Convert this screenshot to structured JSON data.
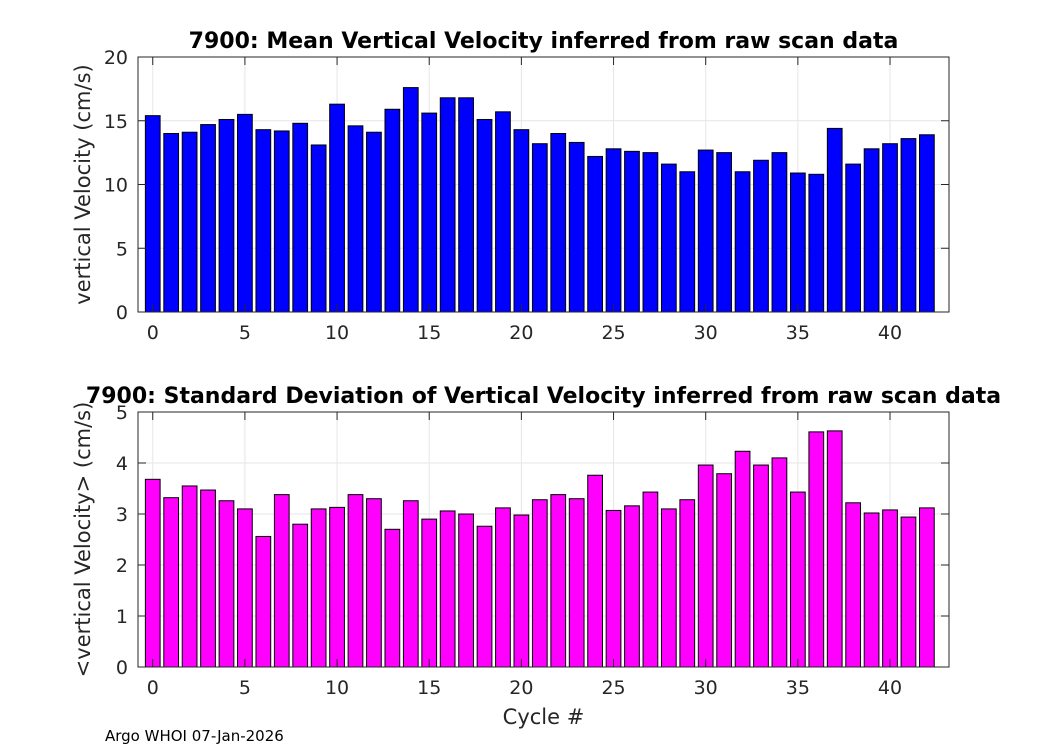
{
  "footer": "Argo WHOI 07-Jan-2026",
  "chart_data": [
    {
      "type": "bar",
      "title": "7900: Mean Vertical Velocity inferred from raw scan data",
      "xlabel": "",
      "ylabel": "vertical Velocity (cm/s)",
      "bar_color": "#0000ff",
      "x": [
        0,
        1,
        2,
        3,
        4,
        5,
        6,
        7,
        8,
        9,
        10,
        11,
        12,
        13,
        14,
        15,
        16,
        17,
        18,
        19,
        20,
        21,
        22,
        23,
        24,
        25,
        26,
        27,
        28,
        29,
        30,
        31,
        32,
        33,
        34,
        35,
        36,
        37,
        38,
        39,
        40,
        41,
        42
      ],
      "values": [
        15.4,
        14.0,
        14.1,
        14.7,
        15.1,
        15.5,
        14.3,
        14.2,
        14.8,
        13.1,
        16.3,
        14.6,
        14.1,
        15.9,
        17.6,
        15.6,
        16.8,
        16.8,
        15.1,
        15.7,
        14.3,
        13.2,
        14.0,
        13.3,
        12.2,
        12.8,
        12.6,
        12.5,
        11.6,
        11.0,
        12.7,
        12.5,
        11.0,
        11.9,
        12.5,
        10.9,
        10.8,
        14.4,
        11.6,
        12.8,
        13.2,
        13.6,
        13.9
      ],
      "xlim": [
        -0.8,
        43.2
      ],
      "ylim": [
        0,
        20
      ],
      "xticks": [
        0,
        5,
        10,
        15,
        20,
        25,
        30,
        35,
        40
      ],
      "yticks": [
        0,
        5,
        10,
        15,
        20
      ],
      "grid": true
    },
    {
      "type": "bar",
      "title": "7900: Standard Deviation of Vertical Velocity inferred from raw scan data",
      "xlabel": "Cycle #",
      "ylabel": "<vertical Velocity> (cm/s)",
      "bar_color": "#ff00ff",
      "x": [
        0,
        1,
        2,
        3,
        4,
        5,
        6,
        7,
        8,
        9,
        10,
        11,
        12,
        13,
        14,
        15,
        16,
        17,
        18,
        19,
        20,
        21,
        22,
        23,
        24,
        25,
        26,
        27,
        28,
        29,
        30,
        31,
        32,
        33,
        34,
        35,
        36,
        37,
        38,
        39,
        40,
        41,
        42
      ],
      "values": [
        3.68,
        3.32,
        3.55,
        3.47,
        3.26,
        3.1,
        2.56,
        3.38,
        2.8,
        3.1,
        3.13,
        3.38,
        3.3,
        2.7,
        3.26,
        2.9,
        3.06,
        3.0,
        2.76,
        3.12,
        2.98,
        3.28,
        3.38,
        3.3,
        3.76,
        3.07,
        3.16,
        3.43,
        3.1,
        3.28,
        3.96,
        3.79,
        4.23,
        3.96,
        4.1,
        3.43,
        4.61,
        4.63,
        3.22,
        3.02,
        3.08,
        2.94,
        3.12
      ],
      "xlim": [
        -0.8,
        43.2
      ],
      "ylim": [
        0,
        5
      ],
      "xticks": [
        0,
        5,
        10,
        15,
        20,
        25,
        30,
        35,
        40
      ],
      "yticks": [
        0,
        1,
        2,
        3,
        4,
        5
      ],
      "grid": true
    }
  ]
}
